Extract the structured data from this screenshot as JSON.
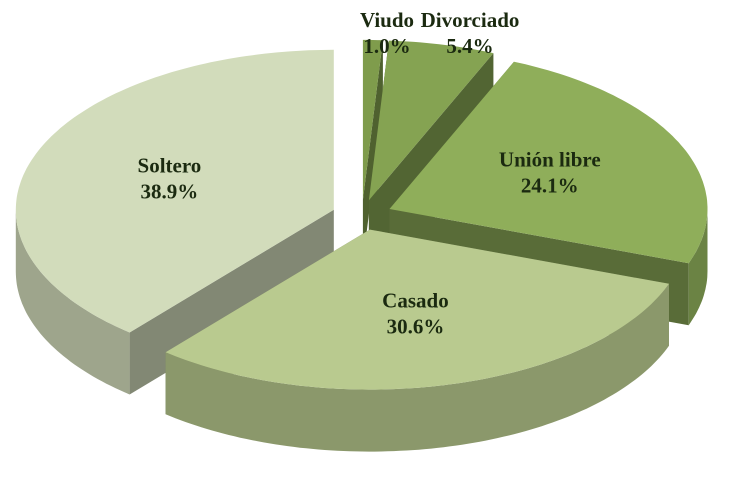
{
  "chart_data": {
    "type": "pie3d",
    "categories": [
      "Viudo",
      "Divorciado",
      "Unión libre",
      "Casado",
      "Soltero"
    ],
    "values": [
      1.0,
      5.4,
      24.1,
      30.6,
      38.9
    ],
    "value_labels": [
      "1.0%",
      "5.4%",
      "24.1%",
      "30.6%",
      "38.9%"
    ],
    "colors": [
      "#7f9c4c",
      "#85a352",
      "#8fae5a",
      "#b9ca8f",
      "#d2dcbb"
    ]
  }
}
